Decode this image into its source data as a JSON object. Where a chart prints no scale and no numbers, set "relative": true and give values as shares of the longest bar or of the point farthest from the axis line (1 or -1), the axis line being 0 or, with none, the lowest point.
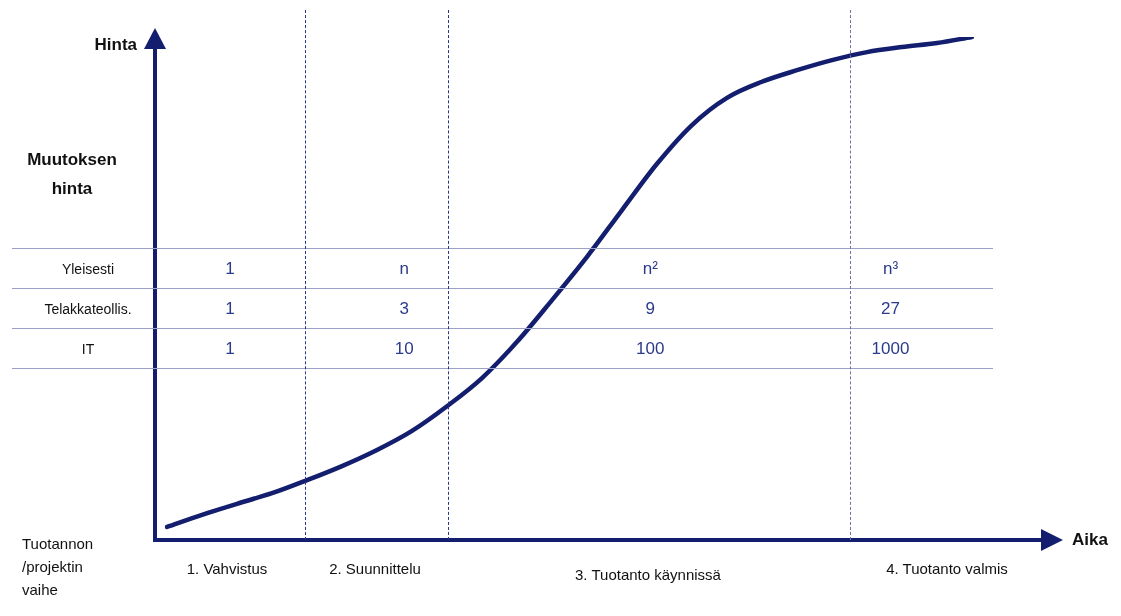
{
  "chart_data": {
    "type": "line",
    "relative": true,
    "xlabel": "Aika",
    "ylabel": "Hinta",
    "categories": [
      null,
      null,
      null,
      null,
      null,
      null,
      null,
      null,
      null,
      null,
      null,
      null,
      null,
      null,
      null,
      null,
      null,
      null,
      null,
      null,
      null,
      null,
      null,
      null
    ],
    "values": [
      0.026,
      0.05,
      0.072,
      0.093,
      0.119,
      0.147,
      0.179,
      0.217,
      0.266,
      0.322,
      0.394,
      0.477,
      0.563,
      0.656,
      0.748,
      0.825,
      0.879,
      0.911,
      0.934,
      0.954,
      0.97,
      0.98,
      0.988,
      1.0
    ],
    "color": "#141e6e",
    "marker": "none",
    "line_style": "solid",
    "legend": false,
    "tick_labels": false,
    "annotations": [
      "Muutoksen hinta",
      "Tuotannon /projektin vaihe",
      "1. Vahvistus",
      "2. Suunnittelu",
      "3. Tuotanto käynnissä",
      "4. Tuotanto valmis",
      "Yleisesti",
      "1",
      "n",
      "n²",
      "n³",
      "Telakkateollis.",
      "1",
      "3",
      "9",
      "27",
      "IT",
      "1",
      "10",
      "100",
      "1000"
    ]
  }
}
